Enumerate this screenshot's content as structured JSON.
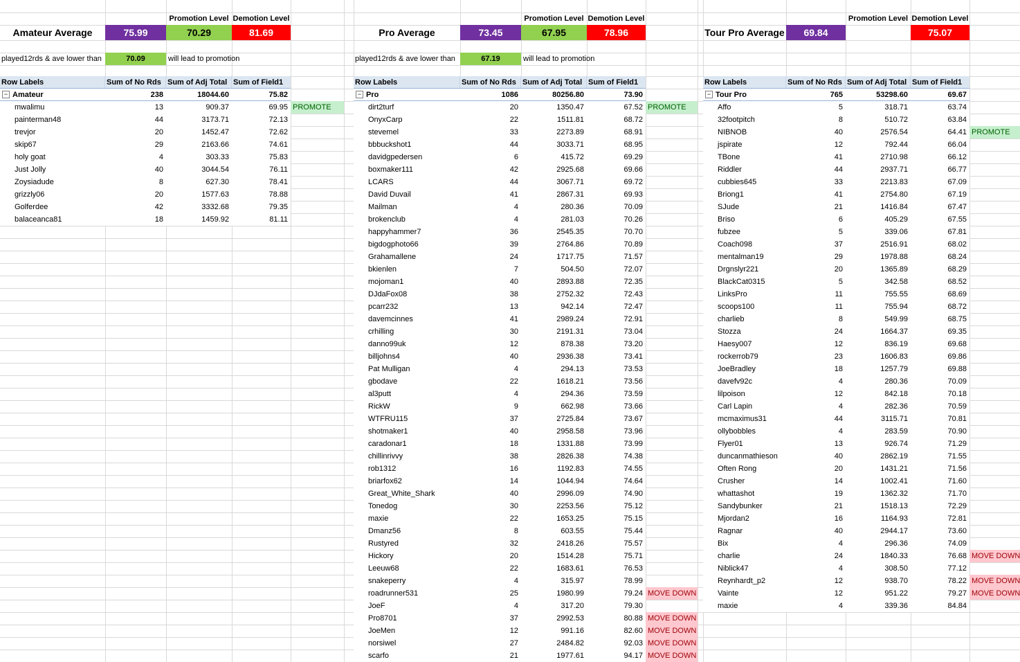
{
  "banner": {
    "promotion_level_label": "Promotion Level",
    "demotion_level_label": "Demotion Level",
    "note_prefix": "played12rds & ave lower than",
    "note_suffix": "will lead to promotion"
  },
  "icons": {
    "collapse_glyph": "−",
    "sort_arrow": "↑"
  },
  "pivot": {
    "columns": [
      "Row Labels",
      "Sum of No Rds",
      "Sum of Adj Total",
      "Sum of Field1"
    ]
  },
  "colors": {
    "average_fill": "#7030A0",
    "promotion_fill": "#92D050",
    "demotion_fill": "#FF0000",
    "header_fill": "#DCE6F1",
    "promote_badge_fill": "#C6EFCE",
    "promote_badge_text": "#006100",
    "movedown_badge_fill": "#FFC7CE",
    "movedown_badge_text": "#9C0006"
  },
  "tables": [
    {
      "title": "Amateur Average",
      "average": "75.99",
      "promotion_level": "70.29",
      "demotion_level": "81.69",
      "threshold": "70.09",
      "group": "Amateur",
      "total": [
        "238",
        "18044.60",
        "75.82"
      ],
      "rows": [
        [
          "mwalimu",
          "13",
          "909.37",
          "69.95",
          "PROMOTE"
        ],
        [
          "painterman48",
          "44",
          "3173.71",
          "72.13",
          ""
        ],
        [
          "trevjor",
          "20",
          "1452.47",
          "72.62",
          ""
        ],
        [
          "skip67",
          "29",
          "2163.66",
          "74.61",
          ""
        ],
        [
          "holy goat",
          "4",
          "303.33",
          "75.83",
          ""
        ],
        [
          "Just Jolly",
          "40",
          "3044.54",
          "76.11",
          ""
        ],
        [
          "Zoysiadude",
          "8",
          "627.30",
          "78.41",
          ""
        ],
        [
          "grizzly06",
          "20",
          "1577.63",
          "78.88",
          ""
        ],
        [
          "Golferdee",
          "42",
          "3332.68",
          "79.35",
          ""
        ],
        [
          "balaceanca81",
          "18",
          "1459.92",
          "81.11",
          ""
        ]
      ]
    },
    {
      "title": "Pro Average",
      "average": "73.45",
      "promotion_level": "67.95",
      "demotion_level": "78.96",
      "threshold": "67.19",
      "group": "Pro",
      "total": [
        "1086",
        "80256.80",
        "73.90"
      ],
      "rows": [
        [
          "dirt2turf",
          "20",
          "1350.47",
          "67.52",
          "PROMOTE"
        ],
        [
          "OnyxCarp",
          "22",
          "1511.81",
          "68.72",
          ""
        ],
        [
          "stevemel",
          "33",
          "2273.89",
          "68.91",
          ""
        ],
        [
          "bbbuckshot1",
          "44",
          "3033.71",
          "68.95",
          ""
        ],
        [
          "davidgpedersen",
          "6",
          "415.72",
          "69.29",
          ""
        ],
        [
          "boxmaker111",
          "42",
          "2925.68",
          "69.66",
          ""
        ],
        [
          "LCARS",
          "44",
          "3067.71",
          "69.72",
          ""
        ],
        [
          "David Duvail",
          "41",
          "2867.31",
          "69.93",
          ""
        ],
        [
          "Mailman",
          "4",
          "280.36",
          "70.09",
          ""
        ],
        [
          "brokenclub",
          "4",
          "281.03",
          "70.26",
          ""
        ],
        [
          "happyhammer7",
          "36",
          "2545.35",
          "70.70",
          ""
        ],
        [
          "bigdogphoto66",
          "39",
          "2764.86",
          "70.89",
          ""
        ],
        [
          "Grahamallene",
          "24",
          "1717.75",
          "71.57",
          ""
        ],
        [
          "bkienlen",
          "7",
          "504.50",
          "72.07",
          ""
        ],
        [
          "mojoman1",
          "40",
          "2893.88",
          "72.35",
          ""
        ],
        [
          "DJdaFox08",
          "38",
          "2752.32",
          "72.43",
          ""
        ],
        [
          "pcarr232",
          "13",
          "942.14",
          "72.47",
          ""
        ],
        [
          "davemcinnes",
          "41",
          "2989.24",
          "72.91",
          ""
        ],
        [
          "crhilling",
          "30",
          "2191.31",
          "73.04",
          ""
        ],
        [
          "danno99uk",
          "12",
          "878.38",
          "73.20",
          ""
        ],
        [
          "billjohns4",
          "40",
          "2936.38",
          "73.41",
          ""
        ],
        [
          "Pat Mulligan",
          "4",
          "294.13",
          "73.53",
          ""
        ],
        [
          "gbodave",
          "22",
          "1618.21",
          "73.56",
          ""
        ],
        [
          "al3putt",
          "4",
          "294.36",
          "73.59",
          ""
        ],
        [
          "RickW",
          "9",
          "662.98",
          "73.66",
          ""
        ],
        [
          "WTFRU115",
          "37",
          "2725.84",
          "73.67",
          ""
        ],
        [
          "shotmaker1",
          "40",
          "2958.58",
          "73.96",
          ""
        ],
        [
          "caradonar1",
          "18",
          "1331.88",
          "73.99",
          ""
        ],
        [
          "chillinrivvy",
          "38",
          "2826.38",
          "74.38",
          ""
        ],
        [
          "rob1312",
          "16",
          "1192.83",
          "74.55",
          ""
        ],
        [
          "briarfox62",
          "14",
          "1044.94",
          "74.64",
          ""
        ],
        [
          "Great_White_Shark",
          "40",
          "2996.09",
          "74.90",
          ""
        ],
        [
          "Tonedog",
          "30",
          "2253.56",
          "75.12",
          ""
        ],
        [
          "maxie",
          "22",
          "1653.25",
          "75.15",
          ""
        ],
        [
          "Dmanz56",
          "8",
          "603.55",
          "75.44",
          ""
        ],
        [
          "Rustyred",
          "32",
          "2418.26",
          "75.57",
          ""
        ],
        [
          "Hickory",
          "20",
          "1514.28",
          "75.71",
          ""
        ],
        [
          "Leeuw68",
          "22",
          "1683.61",
          "76.53",
          ""
        ],
        [
          "snakeperry",
          "4",
          "315.97",
          "78.99",
          ""
        ],
        [
          "roadrunner531",
          "25",
          "1980.99",
          "79.24",
          "MOVE DOWN"
        ],
        [
          "JoeF",
          "4",
          "317.20",
          "79.30",
          ""
        ],
        [
          "Pro8701",
          "37",
          "2992.53",
          "80.88",
          "MOVE DOWN"
        ],
        [
          "JoeMen",
          "12",
          "991.16",
          "82.60",
          "MOVE DOWN"
        ],
        [
          "norsiwel",
          "27",
          "2484.82",
          "92.03",
          "MOVE DOWN"
        ],
        [
          "scarfo",
          "21",
          "1977.61",
          "94.17",
          "MOVE DOWN"
        ]
      ]
    },
    {
      "title": "Tour Pro Average",
      "average": "69.84",
      "promotion_level": "",
      "demotion_level": "75.07",
      "threshold": null,
      "group": "Tour Pro",
      "total": [
        "765",
        "53298.60",
        "69.67"
      ],
      "rows": [
        [
          "Affo",
          "5",
          "318.71",
          "63.74",
          ""
        ],
        [
          "32footpitch",
          "8",
          "510.72",
          "63.84",
          ""
        ],
        [
          "NIBNOB",
          "40",
          "2576.54",
          "64.41",
          "PROMOTE"
        ],
        [
          "jspirate",
          "12",
          "792.44",
          "66.04",
          ""
        ],
        [
          "TBone",
          "41",
          "2710.98",
          "66.12",
          ""
        ],
        [
          "Riddler",
          "44",
          "2937.71",
          "66.77",
          ""
        ],
        [
          "cubbies645",
          "33",
          "2213.83",
          "67.09",
          ""
        ],
        [
          "Briong1",
          "41",
          "2754.80",
          "67.19",
          ""
        ],
        [
          "SJude",
          "21",
          "1416.84",
          "67.47",
          ""
        ],
        [
          "Briso",
          "6",
          "405.29",
          "67.55",
          ""
        ],
        [
          "fubzee",
          "5",
          "339.06",
          "67.81",
          ""
        ],
        [
          "Coach098",
          "37",
          "2516.91",
          "68.02",
          ""
        ],
        [
          "mentalman19",
          "29",
          "1978.88",
          "68.24",
          ""
        ],
        [
          "Drgnslyr221",
          "20",
          "1365.89",
          "68.29",
          ""
        ],
        [
          "BlackCat0315",
          "5",
          "342.58",
          "68.52",
          ""
        ],
        [
          "LinksPro",
          "11",
          "755.55",
          "68.69",
          ""
        ],
        [
          "scoops100",
          "11",
          "755.94",
          "68.72",
          ""
        ],
        [
          "charlieb",
          "8",
          "549.99",
          "68.75",
          ""
        ],
        [
          "Stozza",
          "24",
          "1664.37",
          "69.35",
          ""
        ],
        [
          "Haesy007",
          "12",
          "836.19",
          "69.68",
          ""
        ],
        [
          "rockerrob79",
          "23",
          "1606.83",
          "69.86",
          ""
        ],
        [
          "JoeBradley",
          "18",
          "1257.79",
          "69.88",
          ""
        ],
        [
          "davefv92c",
          "4",
          "280.36",
          "70.09",
          ""
        ],
        [
          "lilpoison",
          "12",
          "842.18",
          "70.18",
          ""
        ],
        [
          "Carl Lapin",
          "4",
          "282.36",
          "70.59",
          ""
        ],
        [
          "mcmaximus31",
          "44",
          "3115.71",
          "70.81",
          ""
        ],
        [
          "ollybobbles",
          "4",
          "283.59",
          "70.90",
          ""
        ],
        [
          "Flyer01",
          "13",
          "926.74",
          "71.29",
          ""
        ],
        [
          "duncanmathieson",
          "40",
          "2862.19",
          "71.55",
          ""
        ],
        [
          "Often Rong",
          "20",
          "1431.21",
          "71.56",
          ""
        ],
        [
          "Crusher",
          "14",
          "1002.41",
          "71.60",
          ""
        ],
        [
          "whattashot",
          "19",
          "1362.32",
          "71.70",
          ""
        ],
        [
          "Sandybunker",
          "21",
          "1518.13",
          "72.29",
          ""
        ],
        [
          "Mjordan2",
          "16",
          "1164.93",
          "72.81",
          ""
        ],
        [
          "Ragnar",
          "40",
          "2944.17",
          "73.60",
          ""
        ],
        [
          "Bix",
          "4",
          "296.36",
          "74.09",
          ""
        ],
        [
          "charlie",
          "24",
          "1840.33",
          "76.68",
          "MOVE DOWN"
        ],
        [
          "Niblick47",
          "4",
          "308.50",
          "77.12",
          ""
        ],
        [
          "Reynhardt_p2",
          "12",
          "938.70",
          "78.22",
          "MOVE DOWN"
        ],
        [
          "Vainte",
          "12",
          "951.22",
          "79.27",
          "MOVE DOWN"
        ],
        [
          "maxie",
          "4",
          "339.36",
          "84.84",
          ""
        ]
      ]
    }
  ]
}
